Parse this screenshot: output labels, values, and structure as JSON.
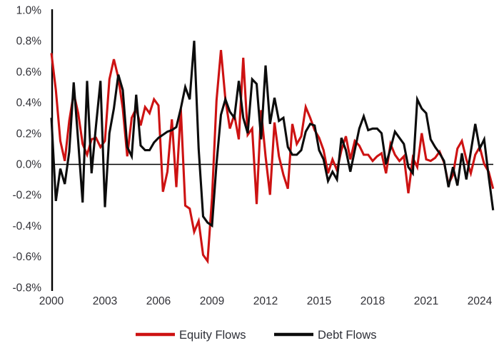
{
  "chart_data": {
    "type": "line",
    "title": "",
    "xlabel": "",
    "ylabel": "",
    "x_unit": "quarter",
    "x_start": "2000-Q1",
    "x_end": "2024-Q4",
    "points_per_year": 4,
    "ylim": [
      -0.8,
      1.0
    ],
    "grid": "zero-line-only",
    "legend_position": "bottom-center",
    "y_ticks": [
      {
        "value": 1.0,
        "label": "1.0%"
      },
      {
        "value": 0.8,
        "label": "0.8%"
      },
      {
        "value": 0.6,
        "label": "0.6%"
      },
      {
        "value": 0.4,
        "label": "0.4%"
      },
      {
        "value": 0.2,
        "label": "0.2%"
      },
      {
        "value": 0.0,
        "label": "0.0%"
      },
      {
        "value": -0.2,
        "label": "-0.2%"
      },
      {
        "value": -0.4,
        "label": "-0.4%"
      },
      {
        "value": -0.6,
        "label": "-0.6%"
      },
      {
        "value": -0.8,
        "label": "-0.8%"
      }
    ],
    "x_ticks": [
      {
        "value": 2000,
        "label": "2000"
      },
      {
        "value": 2003,
        "label": "2003"
      },
      {
        "value": 2006,
        "label": "2006"
      },
      {
        "value": 2009,
        "label": "2009"
      },
      {
        "value": 2012,
        "label": "2012"
      },
      {
        "value": 2015,
        "label": "2015"
      },
      {
        "value": 2018,
        "label": "2018"
      },
      {
        "value": 2021,
        "label": "2021"
      },
      {
        "value": 2024,
        "label": "2024"
      }
    ],
    "series": [
      {
        "name": "Equity Flows",
        "color": "#cd1212",
        "values": [
          0.72,
          0.48,
          0.15,
          0.02,
          0.28,
          0.46,
          0.33,
          0.13,
          0.06,
          0.16,
          0.17,
          0.11,
          0.15,
          0.55,
          0.68,
          0.56,
          0.36,
          0.05,
          0.3,
          0.36,
          0.25,
          0.37,
          0.33,
          0.42,
          0.38,
          -0.18,
          -0.05,
          0.29,
          -0.15,
          0.36,
          -0.27,
          -0.29,
          -0.44,
          -0.37,
          -0.59,
          -0.63,
          -0.22,
          0.41,
          0.74,
          0.42,
          0.23,
          0.32,
          0.16,
          0.69,
          0.19,
          0.23,
          -0.26,
          0.35,
          0.05,
          -0.2,
          0.27,
          0.05,
          -0.07,
          -0.16,
          0.26,
          0.13,
          0.18,
          0.37,
          0.3,
          0.22,
          0.17,
          0.09,
          -0.06,
          0.03,
          -0.04,
          0.09,
          0.18,
          0.03,
          0.15,
          0.12,
          0.06,
          0.06,
          0.02,
          0.05,
          0.07,
          -0.06,
          0.13,
          0.06,
          0.02,
          0.05,
          -0.19,
          0.04,
          -0.02,
          0.2,
          0.03,
          0.02,
          0.04,
          0.08,
          0.01,
          -0.13,
          -0.07,
          0.1,
          0.15,
          0.03,
          -0.06,
          0.06,
          0.11,
          0.0,
          -0.05,
          -0.16
        ]
      },
      {
        "name": "Debt Flows",
        "color": "#0c0c0c",
        "values": [
          0.3,
          -0.24,
          -0.03,
          -0.13,
          0.08,
          0.53,
          0.15,
          -0.25,
          0.54,
          -0.06,
          0.25,
          0.54,
          -0.28,
          0.2,
          0.36,
          0.58,
          0.48,
          0.11,
          0.05,
          0.45,
          0.12,
          0.09,
          0.09,
          0.14,
          0.17,
          0.19,
          0.21,
          0.22,
          0.24,
          0.36,
          0.5,
          0.42,
          0.8,
          0.1,
          -0.34,
          -0.38,
          -0.4,
          0.0,
          0.32,
          0.42,
          0.34,
          0.3,
          0.54,
          0.3,
          0.2,
          0.55,
          0.52,
          0.16,
          0.64,
          0.26,
          0.43,
          0.28,
          0.3,
          0.11,
          0.06,
          0.06,
          0.09,
          0.21,
          0.26,
          0.25,
          0.09,
          0.03,
          -0.11,
          -0.05,
          -0.1,
          0.17,
          0.09,
          -0.05,
          0.09,
          0.23,
          0.31,
          0.22,
          0.23,
          0.23,
          0.2,
          0.0,
          0.1,
          0.21,
          0.17,
          0.13,
          -0.02,
          -0.06,
          0.42,
          0.36,
          0.33,
          0.16,
          0.11,
          0.07,
          0.02,
          -0.15,
          -0.02,
          -0.14,
          0.07,
          -0.1,
          0.08,
          0.26,
          0.1,
          0.16,
          -0.08,
          -0.3
        ]
      }
    ]
  },
  "colors": {
    "background": "#ffffff",
    "axis": "#000000",
    "tick_text": "#303036"
  }
}
